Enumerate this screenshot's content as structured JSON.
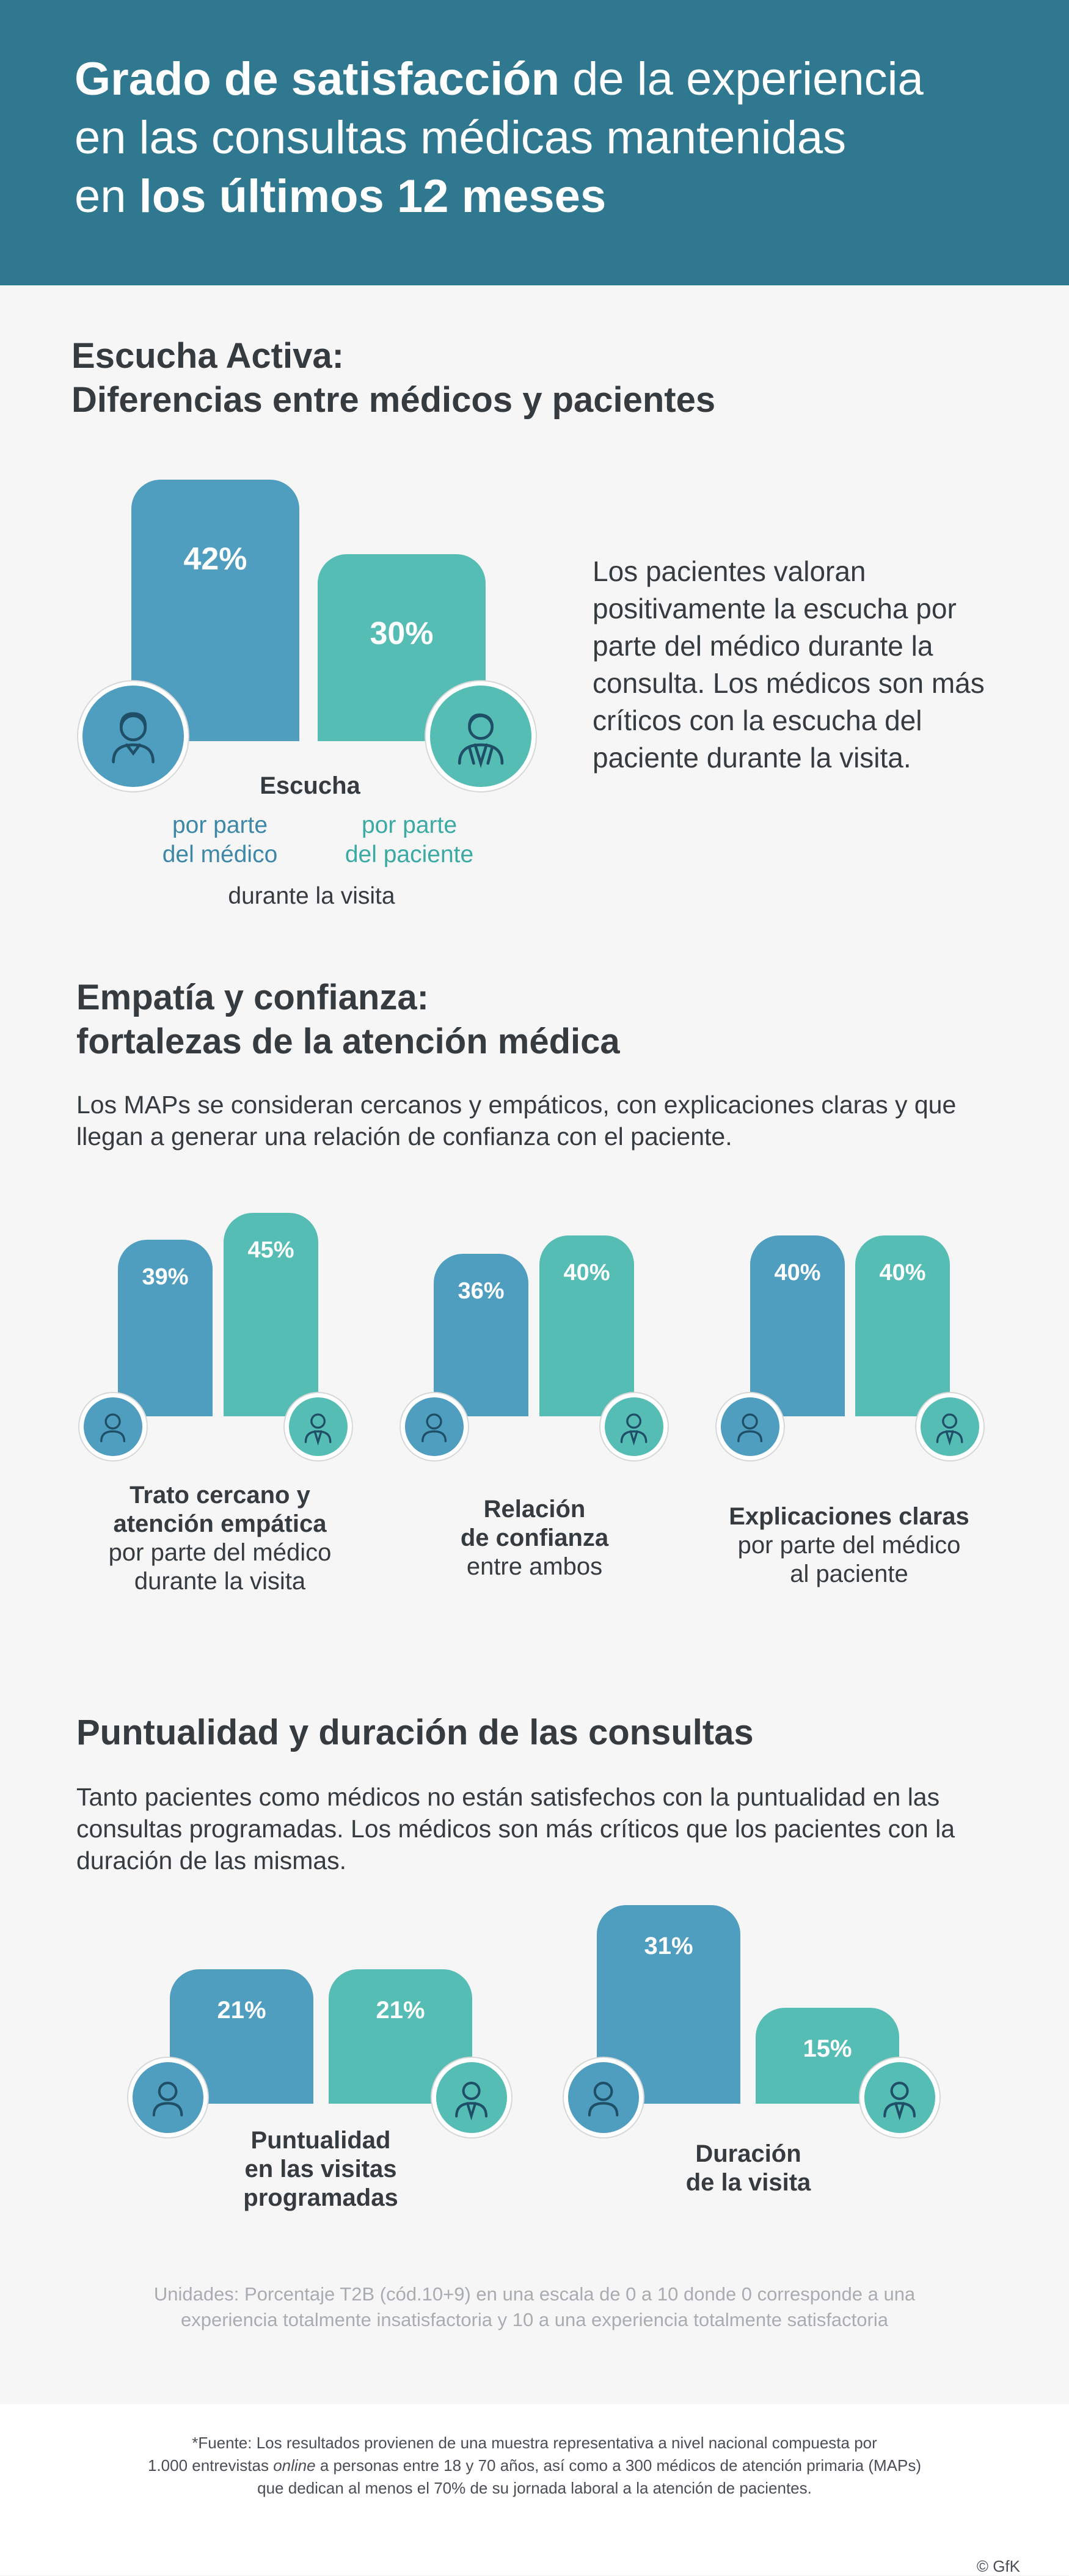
{
  "header": {
    "line1_bold": "Grado de satisfacción",
    "line1_rest": " de la experiencia",
    "line2": "en las consultas médicas mantenidas",
    "line3_pre": "en ",
    "line3_bold": "los últimos 12 meses"
  },
  "colors": {
    "doctor": "#4f9dbf",
    "patient": "#56bdb5",
    "header": "#2f7890"
  },
  "icons": {
    "doctor": "doctor-avatar-icon",
    "patient": "patient-avatar-icon"
  },
  "escucha": {
    "title_line1": "Escucha Activa:",
    "title_line2": "Diferencias entre médicos y pacientes",
    "description": "Los pacientes valoran positivamente la escucha por parte del médico durante la consulta. Los médicos son más críticos con la escucha del paciente durante la visita.",
    "label_bold": "Escucha",
    "label_doc": "por parte\ndel médico",
    "label_pat": "por parte\ndel paciente",
    "label_after": "durante la visita"
  },
  "empatia": {
    "title_line1": "Empatía y confianza:",
    "title_line2": "fortalezas de la atención médica",
    "description": "Los MAPs se consideran cercanos y empáticos, con  explicaciones claras y que llegan a generar una relación de confianza con el paciente.",
    "labels": [
      {
        "bold1": "Trato cercano y",
        "bold2": "atención empática",
        "normal1": "por parte del médico",
        "normal2": "durante la visita"
      },
      {
        "bold1": "Relación",
        "bold2": "de confianza",
        "normal1": "entre ambos",
        "normal2": ""
      },
      {
        "bold1": "Explicaciones claras",
        "bold2": "",
        "normal1": "por parte del médico",
        "normal2": "al paciente"
      }
    ]
  },
  "puntualidad": {
    "title": "Puntualidad y duración de las consultas",
    "description": "Tanto pacientes como médicos no están satisfechos con la puntualidad en las consultas programadas. Los médicos son más críticos que los pacientes con la duración de las mismas.",
    "labels": [
      {
        "line1": "Puntualidad",
        "line2": "en las visitas",
        "line3": "programadas"
      },
      {
        "line1": "Duración",
        "line2": "de la visita",
        "line3": ""
      }
    ]
  },
  "chart_data": [
    {
      "type": "bar",
      "categories": [
        "Escucha durante la visita"
      ],
      "series": [
        {
          "name": "por parte del médico",
          "values": [
            42
          ]
        },
        {
          "name": "por parte del paciente",
          "values": [
            30
          ]
        }
      ]
    },
    {
      "type": "bar",
      "categories": [
        "Trato cercano y atención empática"
      ],
      "series": [
        {
          "values": [
            39
          ]
        },
        {
          "values": [
            45
          ]
        }
      ]
    },
    {
      "type": "bar",
      "categories": [
        "Relación de confianza"
      ],
      "series": [
        {
          "values": [
            36
          ]
        },
        {
          "values": [
            40
          ]
        }
      ]
    },
    {
      "type": "bar",
      "categories": [
        "Explicaciones claras"
      ],
      "series": [
        {
          "values": [
            40
          ]
        },
        {
          "values": [
            40
          ]
        }
      ]
    },
    {
      "type": "bar",
      "categories": [
        "Puntualidad en las visitas programadas"
      ],
      "series": [
        {
          "values": [
            21
          ]
        },
        {
          "values": [
            21
          ]
        }
      ]
    },
    {
      "type": "bar",
      "categories": [
        "Duración de la visita"
      ],
      "series": [
        {
          "values": [
            31
          ]
        },
        {
          "values": [
            15
          ]
        }
      ]
    }
  ],
  "units_line1": "Unidades: Porcentaje T2B (cód.10+9) en una escala de 0 a 10 donde 0 corresponde a una",
  "units_line2": "experiencia totalmente insatisfactoria y 10 a una experiencia totalmente satisfactoria",
  "footnote": {
    "line1": "*Fuente: Los resultados provienen de una muestra representativa a nivel nacional compuesta por",
    "line2_pre": "1.000 entrevistas ",
    "line2_italic": "online",
    "line2_post": " a personas entre 18 y 70 años, así como a 300 médicos de atención primaria (MAPs)",
    "line3": "que dedican al menos el 70% de su jornada laboral a la atención de pacientes."
  },
  "copyright": "© GfK"
}
